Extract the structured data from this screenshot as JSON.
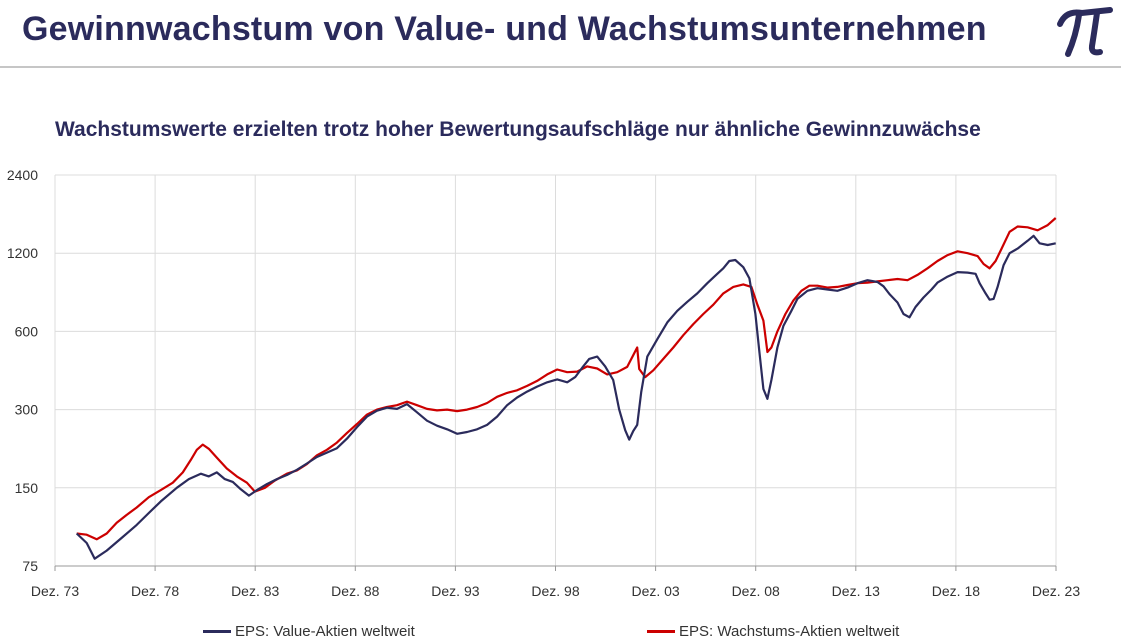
{
  "header": {
    "title": "Gewinnwachstum von Value- und Wachstumsunternehmen",
    "logo_icon": "pi-logo-icon"
  },
  "chart_data": {
    "type": "line",
    "title": "Wachstumswerte erzielten trotz hoher Bewertungsaufschläge nur ähnliche Gewinnzuwächse",
    "xlabel": "",
    "ylabel": "",
    "yscale": "log",
    "ylim": [
      75,
      2400
    ],
    "yticks": [
      75,
      150,
      300,
      600,
      1200,
      2400
    ],
    "xlim": [
      1973.917,
      2023.917
    ],
    "xticks": [
      {
        "x": 1973.917,
        "label": "Dez. 73"
      },
      {
        "x": 1978.917,
        "label": "Dez. 78"
      },
      {
        "x": 1983.917,
        "label": "Dez. 83"
      },
      {
        "x": 1988.917,
        "label": "Dez. 88"
      },
      {
        "x": 1993.917,
        "label": "Dez. 93"
      },
      {
        "x": 1998.917,
        "label": "Dez. 98"
      },
      {
        "x": 2003.917,
        "label": "Dez. 03"
      },
      {
        "x": 2008.917,
        "label": "Dez. 08"
      },
      {
        "x": 2013.917,
        "label": "Dez. 13"
      },
      {
        "x": 2018.917,
        "label": "Dez. 18"
      },
      {
        "x": 2023.917,
        "label": "Dez. 23"
      }
    ],
    "grid": true,
    "legend_position": "bottom",
    "series": [
      {
        "name": "EPS: Value-Aktien weltweit",
        "color": "#2b2b5c",
        "points": [
          [
            1975.0,
            100
          ],
          [
            1975.5,
            92
          ],
          [
            1975.9,
            80
          ],
          [
            1976.5,
            86
          ],
          [
            1977.3,
            97
          ],
          [
            1978.0,
            108
          ],
          [
            1978.6,
            120
          ],
          [
            1979.2,
            133
          ],
          [
            1980.0,
            150
          ],
          [
            1980.6,
            162
          ],
          [
            1981.2,
            170
          ],
          [
            1981.6,
            166
          ],
          [
            1982.0,
            172
          ],
          [
            1982.4,
            162
          ],
          [
            1982.8,
            158
          ],
          [
            1983.2,
            148
          ],
          [
            1983.6,
            140
          ],
          [
            1984.0,
            147
          ],
          [
            1984.5,
            155
          ],
          [
            1985.0,
            162
          ],
          [
            1985.5,
            168
          ],
          [
            1986.0,
            176
          ],
          [
            1986.5,
            186
          ],
          [
            1987.0,
            197
          ],
          [
            1987.5,
            205
          ],
          [
            1988.0,
            213
          ],
          [
            1988.5,
            232
          ],
          [
            1989.0,
            257
          ],
          [
            1989.5,
            282
          ],
          [
            1990.0,
            297
          ],
          [
            1990.5,
            305
          ],
          [
            1991.0,
            302
          ],
          [
            1991.5,
            315
          ],
          [
            1992.0,
            293
          ],
          [
            1992.5,
            272
          ],
          [
            1993.0,
            260
          ],
          [
            1993.5,
            252
          ],
          [
            1994.0,
            242
          ],
          [
            1994.5,
            246
          ],
          [
            1995.0,
            252
          ],
          [
            1995.5,
            262
          ],
          [
            1996.0,
            282
          ],
          [
            1996.5,
            312
          ],
          [
            1997.0,
            334
          ],
          [
            1997.5,
            352
          ],
          [
            1998.0,
            368
          ],
          [
            1998.5,
            382
          ],
          [
            1999.0,
            392
          ],
          [
            1999.5,
            382
          ],
          [
            1999.9,
            400
          ],
          [
            2000.3,
            440
          ],
          [
            2000.6,
            470
          ],
          [
            2001.0,
            480
          ],
          [
            2001.4,
            440
          ],
          [
            2001.8,
            390
          ],
          [
            2002.1,
            300
          ],
          [
            2002.4,
            250
          ],
          [
            2002.6,
            230
          ],
          [
            2002.8,
            248
          ],
          [
            2003.0,
            262
          ],
          [
            2003.2,
            350
          ],
          [
            2003.5,
            480
          ],
          [
            2004.0,
            560
          ],
          [
            2004.5,
            650
          ],
          [
            2005.0,
            720
          ],
          [
            2005.5,
            780
          ],
          [
            2006.0,
            840
          ],
          [
            2006.5,
            920
          ],
          [
            2007.0,
            1000
          ],
          [
            2007.3,
            1050
          ],
          [
            2007.6,
            1120
          ],
          [
            2007.9,
            1130
          ],
          [
            2008.3,
            1060
          ],
          [
            2008.6,
            960
          ],
          [
            2008.9,
            700
          ],
          [
            2009.1,
            500
          ],
          [
            2009.3,
            360
          ],
          [
            2009.5,
            330
          ],
          [
            2009.7,
            390
          ],
          [
            2010.0,
            520
          ],
          [
            2010.3,
            630
          ],
          [
            2010.7,
            720
          ],
          [
            2011.0,
            800
          ],
          [
            2011.5,
            860
          ],
          [
            2012.0,
            880
          ],
          [
            2012.5,
            870
          ],
          [
            2013.0,
            860
          ],
          [
            2013.5,
            885
          ],
          [
            2014.0,
            920
          ],
          [
            2014.5,
            945
          ],
          [
            2015.0,
            930
          ],
          [
            2015.3,
            895
          ],
          [
            2015.6,
            835
          ],
          [
            2016.0,
            775
          ],
          [
            2016.3,
            700
          ],
          [
            2016.6,
            680
          ],
          [
            2016.9,
            745
          ],
          [
            2017.3,
            810
          ],
          [
            2017.7,
            870
          ],
          [
            2018.0,
            925
          ],
          [
            2018.5,
            975
          ],
          [
            2019.0,
            1015
          ],
          [
            2019.5,
            1010
          ],
          [
            2019.9,
            1000
          ],
          [
            2020.1,
            920
          ],
          [
            2020.4,
            840
          ],
          [
            2020.6,
            795
          ],
          [
            2020.8,
            800
          ],
          [
            2021.0,
            890
          ],
          [
            2021.3,
            1080
          ],
          [
            2021.6,
            1200
          ],
          [
            2022.0,
            1250
          ],
          [
            2022.5,
            1340
          ],
          [
            2022.8,
            1400
          ],
          [
            2023.1,
            1310
          ],
          [
            2023.5,
            1290
          ],
          [
            2023.9,
            1310
          ]
        ]
      },
      {
        "name": "EPS: Wachstums-Aktien weltweit",
        "color": "#cc0000",
        "points": [
          [
            1975.0,
            100
          ],
          [
            1975.5,
            99
          ],
          [
            1976.0,
            95
          ],
          [
            1976.5,
            100
          ],
          [
            1977.0,
            110
          ],
          [
            1977.5,
            118
          ],
          [
            1978.0,
            126
          ],
          [
            1978.6,
            138
          ],
          [
            1979.2,
            147
          ],
          [
            1979.8,
            157
          ],
          [
            1980.3,
            172
          ],
          [
            1980.7,
            192
          ],
          [
            1981.0,
            210
          ],
          [
            1981.3,
            220
          ],
          [
            1981.6,
            212
          ],
          [
            1982.0,
            196
          ],
          [
            1982.5,
            178
          ],
          [
            1983.0,
            166
          ],
          [
            1983.5,
            157
          ],
          [
            1983.9,
            145
          ],
          [
            1984.4,
            150
          ],
          [
            1984.9,
            160
          ],
          [
            1985.5,
            170
          ],
          [
            1986.0,
            175
          ],
          [
            1986.5,
            185
          ],
          [
            1987.0,
            200
          ],
          [
            1987.5,
            210
          ],
          [
            1988.0,
            224
          ],
          [
            1988.5,
            244
          ],
          [
            1989.0,
            264
          ],
          [
            1989.5,
            287
          ],
          [
            1990.0,
            300
          ],
          [
            1990.5,
            307
          ],
          [
            1991.0,
            312
          ],
          [
            1991.5,
            322
          ],
          [
            1992.0,
            312
          ],
          [
            1992.5,
            302
          ],
          [
            1993.0,
            298
          ],
          [
            1993.5,
            300
          ],
          [
            1994.0,
            296
          ],
          [
            1994.5,
            300
          ],
          [
            1995.0,
            307
          ],
          [
            1995.5,
            318
          ],
          [
            1996.0,
            336
          ],
          [
            1996.5,
            348
          ],
          [
            1997.0,
            356
          ],
          [
            1997.5,
            370
          ],
          [
            1998.0,
            387
          ],
          [
            1998.5,
            410
          ],
          [
            1999.0,
            428
          ],
          [
            1999.5,
            418
          ],
          [
            2000.0,
            420
          ],
          [
            2000.5,
            440
          ],
          [
            2001.0,
            432
          ],
          [
            2001.5,
            410
          ],
          [
            2002.0,
            418
          ],
          [
            2002.5,
            438
          ],
          [
            2003.0,
            520
          ],
          [
            2003.1,
            430
          ],
          [
            2003.4,
            400
          ],
          [
            2003.8,
            425
          ],
          [
            2004.3,
            470
          ],
          [
            2004.8,
            520
          ],
          [
            2005.3,
            580
          ],
          [
            2005.8,
            640
          ],
          [
            2006.3,
            700
          ],
          [
            2006.8,
            760
          ],
          [
            2007.3,
            840
          ],
          [
            2007.8,
            890
          ],
          [
            2008.3,
            910
          ],
          [
            2008.7,
            890
          ],
          [
            2009.0,
            760
          ],
          [
            2009.3,
            660
          ],
          [
            2009.5,
            500
          ],
          [
            2009.7,
            520
          ],
          [
            2010.0,
            600
          ],
          [
            2010.4,
            700
          ],
          [
            2010.8,
            790
          ],
          [
            2011.2,
            860
          ],
          [
            2011.6,
            900
          ],
          [
            2012.0,
            900
          ],
          [
            2012.5,
            885
          ],
          [
            2013.0,
            890
          ],
          [
            2013.5,
            905
          ],
          [
            2014.0,
            920
          ],
          [
            2014.5,
            925
          ],
          [
            2015.0,
            935
          ],
          [
            2015.5,
            945
          ],
          [
            2016.0,
            955
          ],
          [
            2016.5,
            945
          ],
          [
            2017.0,
            990
          ],
          [
            2017.5,
            1050
          ],
          [
            2018.0,
            1120
          ],
          [
            2018.5,
            1180
          ],
          [
            2019.0,
            1220
          ],
          [
            2019.5,
            1200
          ],
          [
            2020.0,
            1170
          ],
          [
            2020.3,
            1090
          ],
          [
            2020.6,
            1050
          ],
          [
            2020.9,
            1120
          ],
          [
            2021.2,
            1250
          ],
          [
            2021.6,
            1450
          ],
          [
            2022.0,
            1520
          ],
          [
            2022.5,
            1510
          ],
          [
            2023.0,
            1470
          ],
          [
            2023.5,
            1540
          ],
          [
            2023.9,
            1640
          ]
        ]
      }
    ]
  }
}
